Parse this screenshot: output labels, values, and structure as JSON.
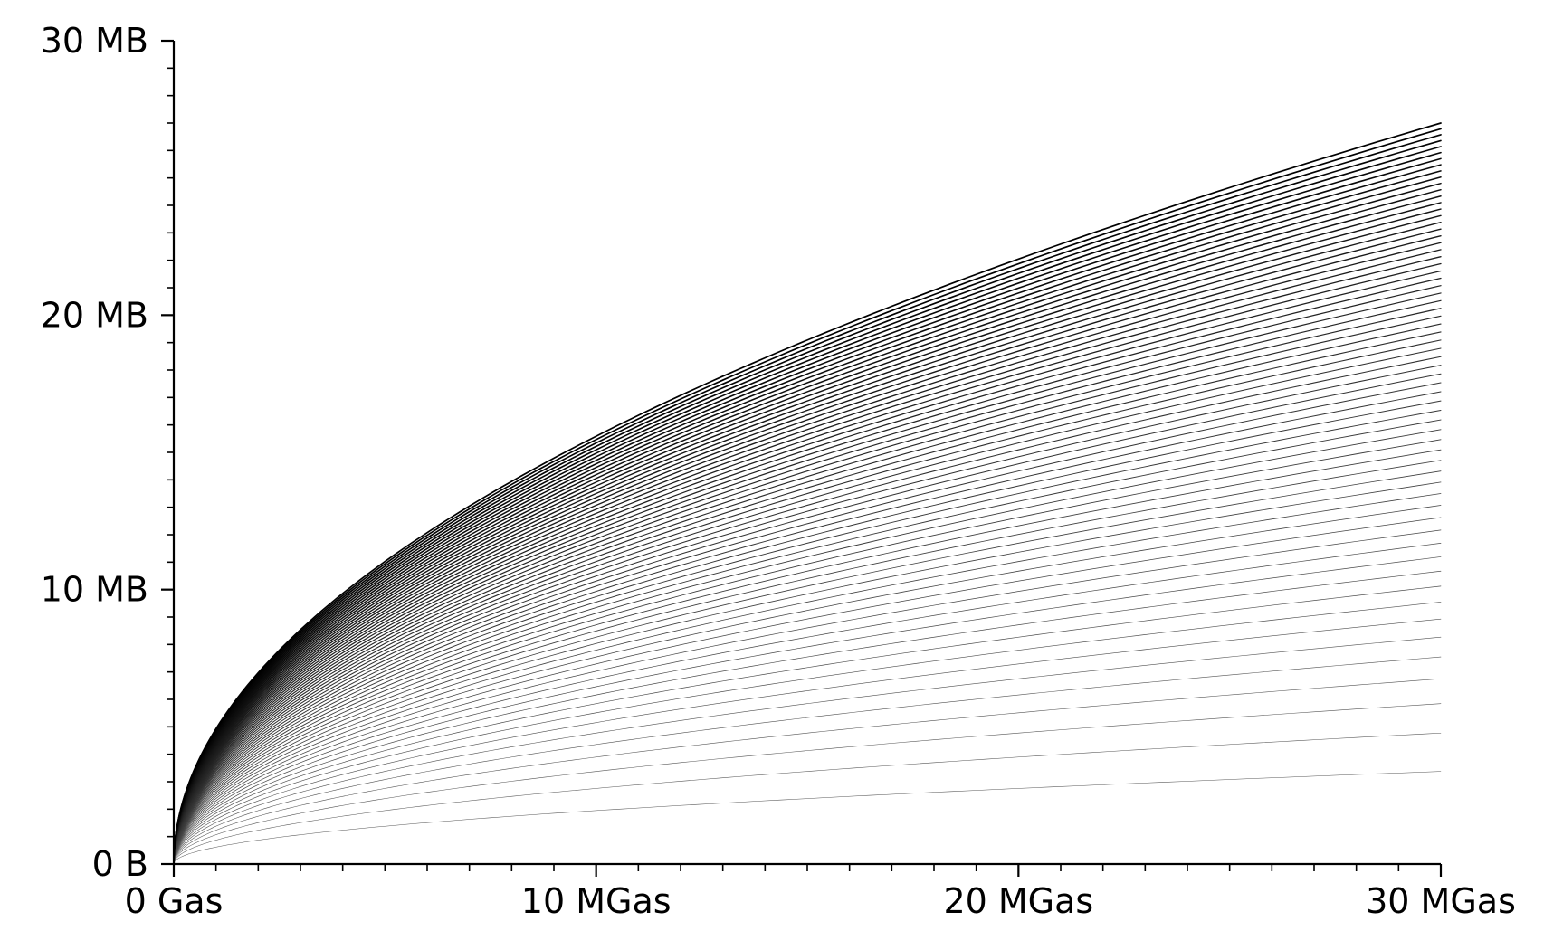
{
  "chart_data": {
    "type": "line",
    "title": "",
    "xlabel": "",
    "ylabel": "",
    "x_unit": "MGas",
    "y_unit": "MB",
    "xlim": [
      0,
      30
    ],
    "ylim": [
      0,
      30
    ],
    "x_major_ticks": [
      0,
      10,
      20,
      30
    ],
    "x_tick_labels": [
      "0 Gas",
      "10 MGas",
      "20 MGas",
      "30 MGas"
    ],
    "x_minor_step": 1,
    "y_major_ticks": [
      0,
      10,
      20,
      30
    ],
    "y_tick_labels": [
      "0 B",
      "10 MB",
      "20 MB",
      "30 MB"
    ],
    "y_minor_step": 1,
    "grid": false,
    "legend": "none",
    "line_color": "#000000",
    "family": {
      "count": 64,
      "curve_shape": "y = c * sqrt(x)",
      "end_values_at_x_30_first": [
        4.0,
        5.6,
        6.8,
        7.8,
        8.7,
        9.4,
        10.1,
        10.7
      ],
      "end_value_at_x_30_max": 27.0,
      "sample_x": [
        0,
        0.5,
        1,
        2,
        4,
        6,
        8,
        10,
        12,
        15,
        18,
        21,
        24,
        27,
        30
      ]
    }
  }
}
